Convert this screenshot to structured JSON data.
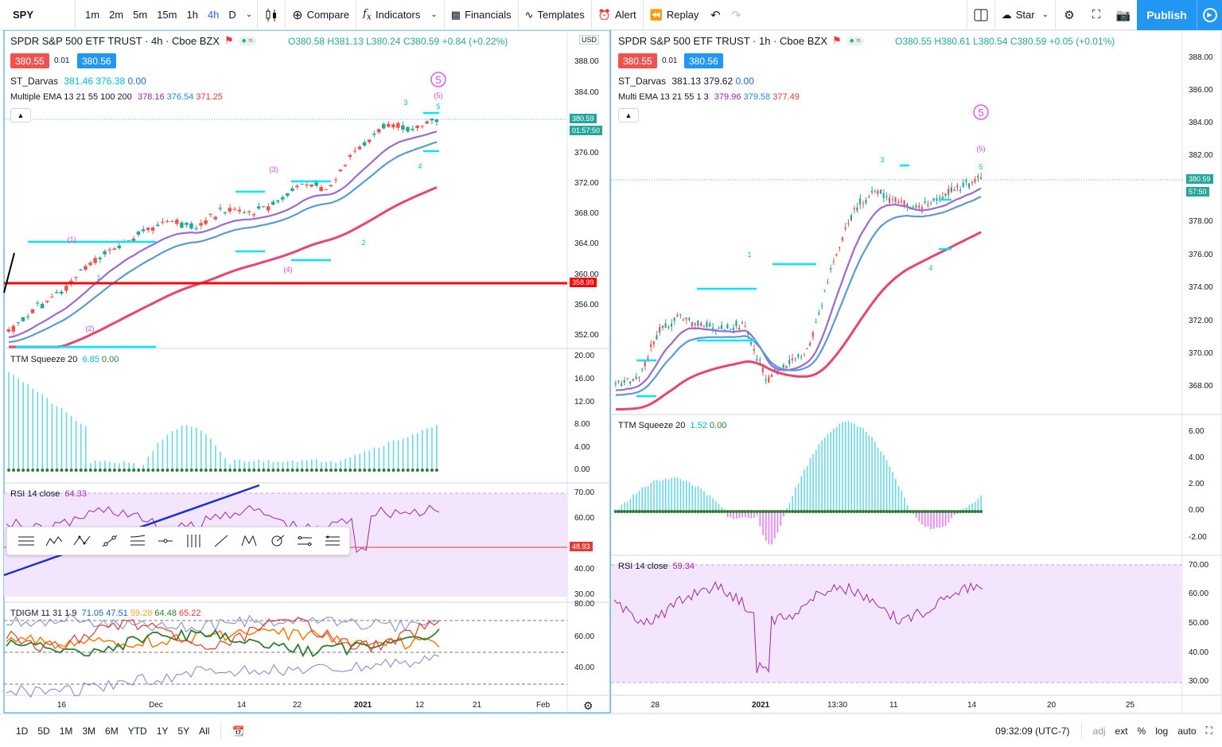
{
  "toolbar": {
    "symbol": "SPY",
    "intervals": [
      "1m",
      "2m",
      "5m",
      "15m",
      "1h",
      "4h",
      "D"
    ],
    "active_interval": "4h",
    "compare": "Compare",
    "indicators": "Indicators",
    "financials": "Financials",
    "templates": "Templates",
    "alert": "Alert",
    "replay": "Replay",
    "star": "Star",
    "publish": "Publish"
  },
  "left_chart": {
    "title": "SPDR S&P 500 ETF TRUST · 4h · Cboe BZX",
    "ohlc": {
      "o": "O380.58",
      "h": "H381.13",
      "l": "L380.24",
      "c": "C380.59",
      "chg": "+0.84 (+0.22%)"
    },
    "bid": "380.55",
    "spread": "0.01",
    "ask": "380.56",
    "darvas": {
      "name": "ST_Darvas",
      "v1": "381.46",
      "v2": "376.38",
      "v3": "0.00"
    },
    "ema": {
      "name": "Multiple EMA 13 21 55 100 200",
      "v1": "378.16",
      "v2": "376.54",
      "v3": "371.25"
    },
    "currency": "USD",
    "price_ticks": [
      "388.00",
      "384.00",
      "376.00",
      "372.00",
      "368.00",
      "364.00",
      "360.00",
      "356.00",
      "352.00"
    ],
    "last_price": "380.59",
    "countdown": "01:57:50",
    "hline_price": "358.99",
    "squeeze": {
      "name": "TTM Squeeze 20",
      "v1": "6.85",
      "v2": "0.00",
      "ticks": [
        "20.00",
        "16.00",
        "12.00",
        "8.00",
        "4.00",
        "0.00"
      ]
    },
    "rsi": {
      "name": "RSI 14 close",
      "v1": "64.33",
      "ticks": [
        "70.00",
        "60.00",
        "40.00",
        "30.00"
      ],
      "hline": "48.93"
    },
    "tdi": {
      "name": "TDIGM 11 31 1 9",
      "v1": "71.05",
      "v2": "47.51",
      "v3": "59.28",
      "v4": "64.48",
      "v5": "65.22",
      "ticks": [
        "80.00",
        "60.00",
        "40.00"
      ]
    },
    "time_ticks": [
      "16",
      "Dec",
      "14",
      "22",
      "2021",
      "12",
      "21",
      "Feb"
    ],
    "wave_labels": [
      "(1)",
      "(2)",
      "(3)",
      "(4)",
      "(5)",
      "1",
      "2",
      "3",
      "4",
      "5"
    ]
  },
  "right_chart": {
    "title": "SPDR S&P 500 ETF TRUST · 1h · Cboe BZX",
    "ohlc": {
      "o": "O380.55",
      "h": "H380.61",
      "l": "L380.54",
      "c": "C380.59",
      "chg": "+0.05 (+0.01%)"
    },
    "bid": "380.55",
    "spread": "0.01",
    "ask": "380.56",
    "darvas": {
      "name": "ST_Darvas",
      "v1": "381.13",
      "v2": "379.62",
      "v3": "0.00"
    },
    "ema": {
      "name": "Multi EMA 13 21 55 1 3",
      "v1": "379.96",
      "v2": "379.58",
      "v3": "377.49"
    },
    "price_ticks": [
      "388.00",
      "386.00",
      "384.00",
      "382.00",
      "378.00",
      "376.00",
      "374.00",
      "372.00",
      "370.00",
      "368.00"
    ],
    "last_price": "380.59",
    "countdown": "57:50",
    "squeeze": {
      "name": "TTM Squeeze 20",
      "v1": "1.52",
      "v2": "0.00",
      "ticks": [
        "6.00",
        "4.00",
        "2.00",
        "0.00",
        "-2.00"
      ]
    },
    "rsi": {
      "name": "RSI 14 close",
      "v1": "59.34",
      "ticks": [
        "70.00",
        "60.00",
        "50.00",
        "40.00",
        "30.00"
      ]
    },
    "time_ticks": [
      "28",
      "2021",
      "13:30",
      "11",
      "14",
      "20",
      "25"
    ],
    "wave_labels": [
      "1",
      "3",
      "4",
      "5",
      "(5)"
    ]
  },
  "bottom": {
    "ranges": [
      "1D",
      "5D",
      "1M",
      "3M",
      "6M",
      "YTD",
      "1Y",
      "5Y",
      "All"
    ],
    "clock": "09:32:09 (UTC-7)",
    "adj": "adj",
    "ext": "ext",
    "pct": "%",
    "log": "log",
    "auto": "auto"
  },
  "colors": {
    "up": "#26a69a",
    "down": "#ef5350",
    "accent": "#2196f3",
    "darvas": "#00e5ff",
    "ema_fast": "#9c6ad6",
    "ema_mid": "#5b9bd5",
    "ema_slow": "#e8456e",
    "wave": "#e040fb"
  }
}
